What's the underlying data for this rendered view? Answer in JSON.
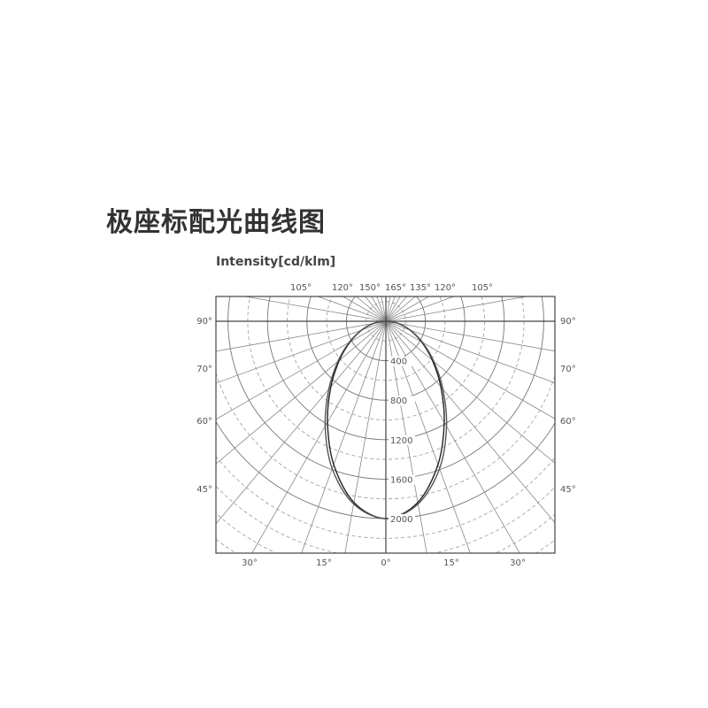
{
  "title": "极座标配光曲线图",
  "chart_data": {
    "type": "polar",
    "title": "极座标配光曲线图",
    "ylabel": "Intensity[cd/klm]",
    "radial_ticks": [
      "400",
      "800",
      "1200",
      "1600",
      "2000"
    ],
    "radial_range": [
      0,
      2000
    ],
    "top_angle_labels": [
      "105°",
      "120°",
      "150°",
      "165°",
      "135°",
      "120°",
      "105°"
    ],
    "side_angle_labels": [
      "90°",
      "70°",
      "60°",
      "45°"
    ],
    "bottom_angle_labels": [
      "30°",
      "15°",
      "0°",
      "15°",
      "30°"
    ],
    "grid": true,
    "angles_deg": [
      0,
      10,
      20,
      30,
      40,
      50,
      60,
      70,
      80,
      90
    ],
    "series": [
      {
        "values": [
          2000,
          1864,
          1545,
          1183,
          867,
          615,
          418,
          259,
          125,
          0
        ],
        "color": "#222222"
      },
      {
        "values": [
          2000,
          1880,
          1590,
          1230,
          900,
          635,
          430,
          265,
          128,
          0
        ],
        "color": "#555555"
      }
    ]
  }
}
